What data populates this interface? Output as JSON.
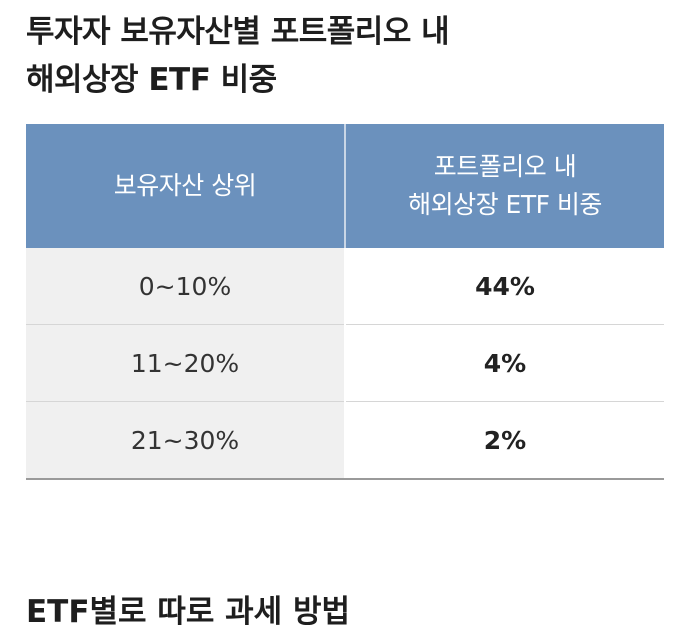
{
  "title": {
    "line1": "투자자 보유자산별 포트폴리오 내",
    "line2": "해외상장 ETF 비중"
  },
  "table": {
    "headers": {
      "left": "보유자산 상위",
      "right_line1": "포트폴리오 내",
      "right_line2": "해외상장 ETF 비중"
    },
    "rows": [
      {
        "range": "0~10%",
        "share": "44%"
      },
      {
        "range": "11~20%",
        "share": "4%"
      },
      {
        "range": "21~30%",
        "share": "2%"
      }
    ]
  },
  "next_section": {
    "heading": "ETF별로 따로 과세 방법"
  },
  "colors": {
    "header_bg": "#6b91bd",
    "row_label_bg": "#f0f0f0"
  }
}
